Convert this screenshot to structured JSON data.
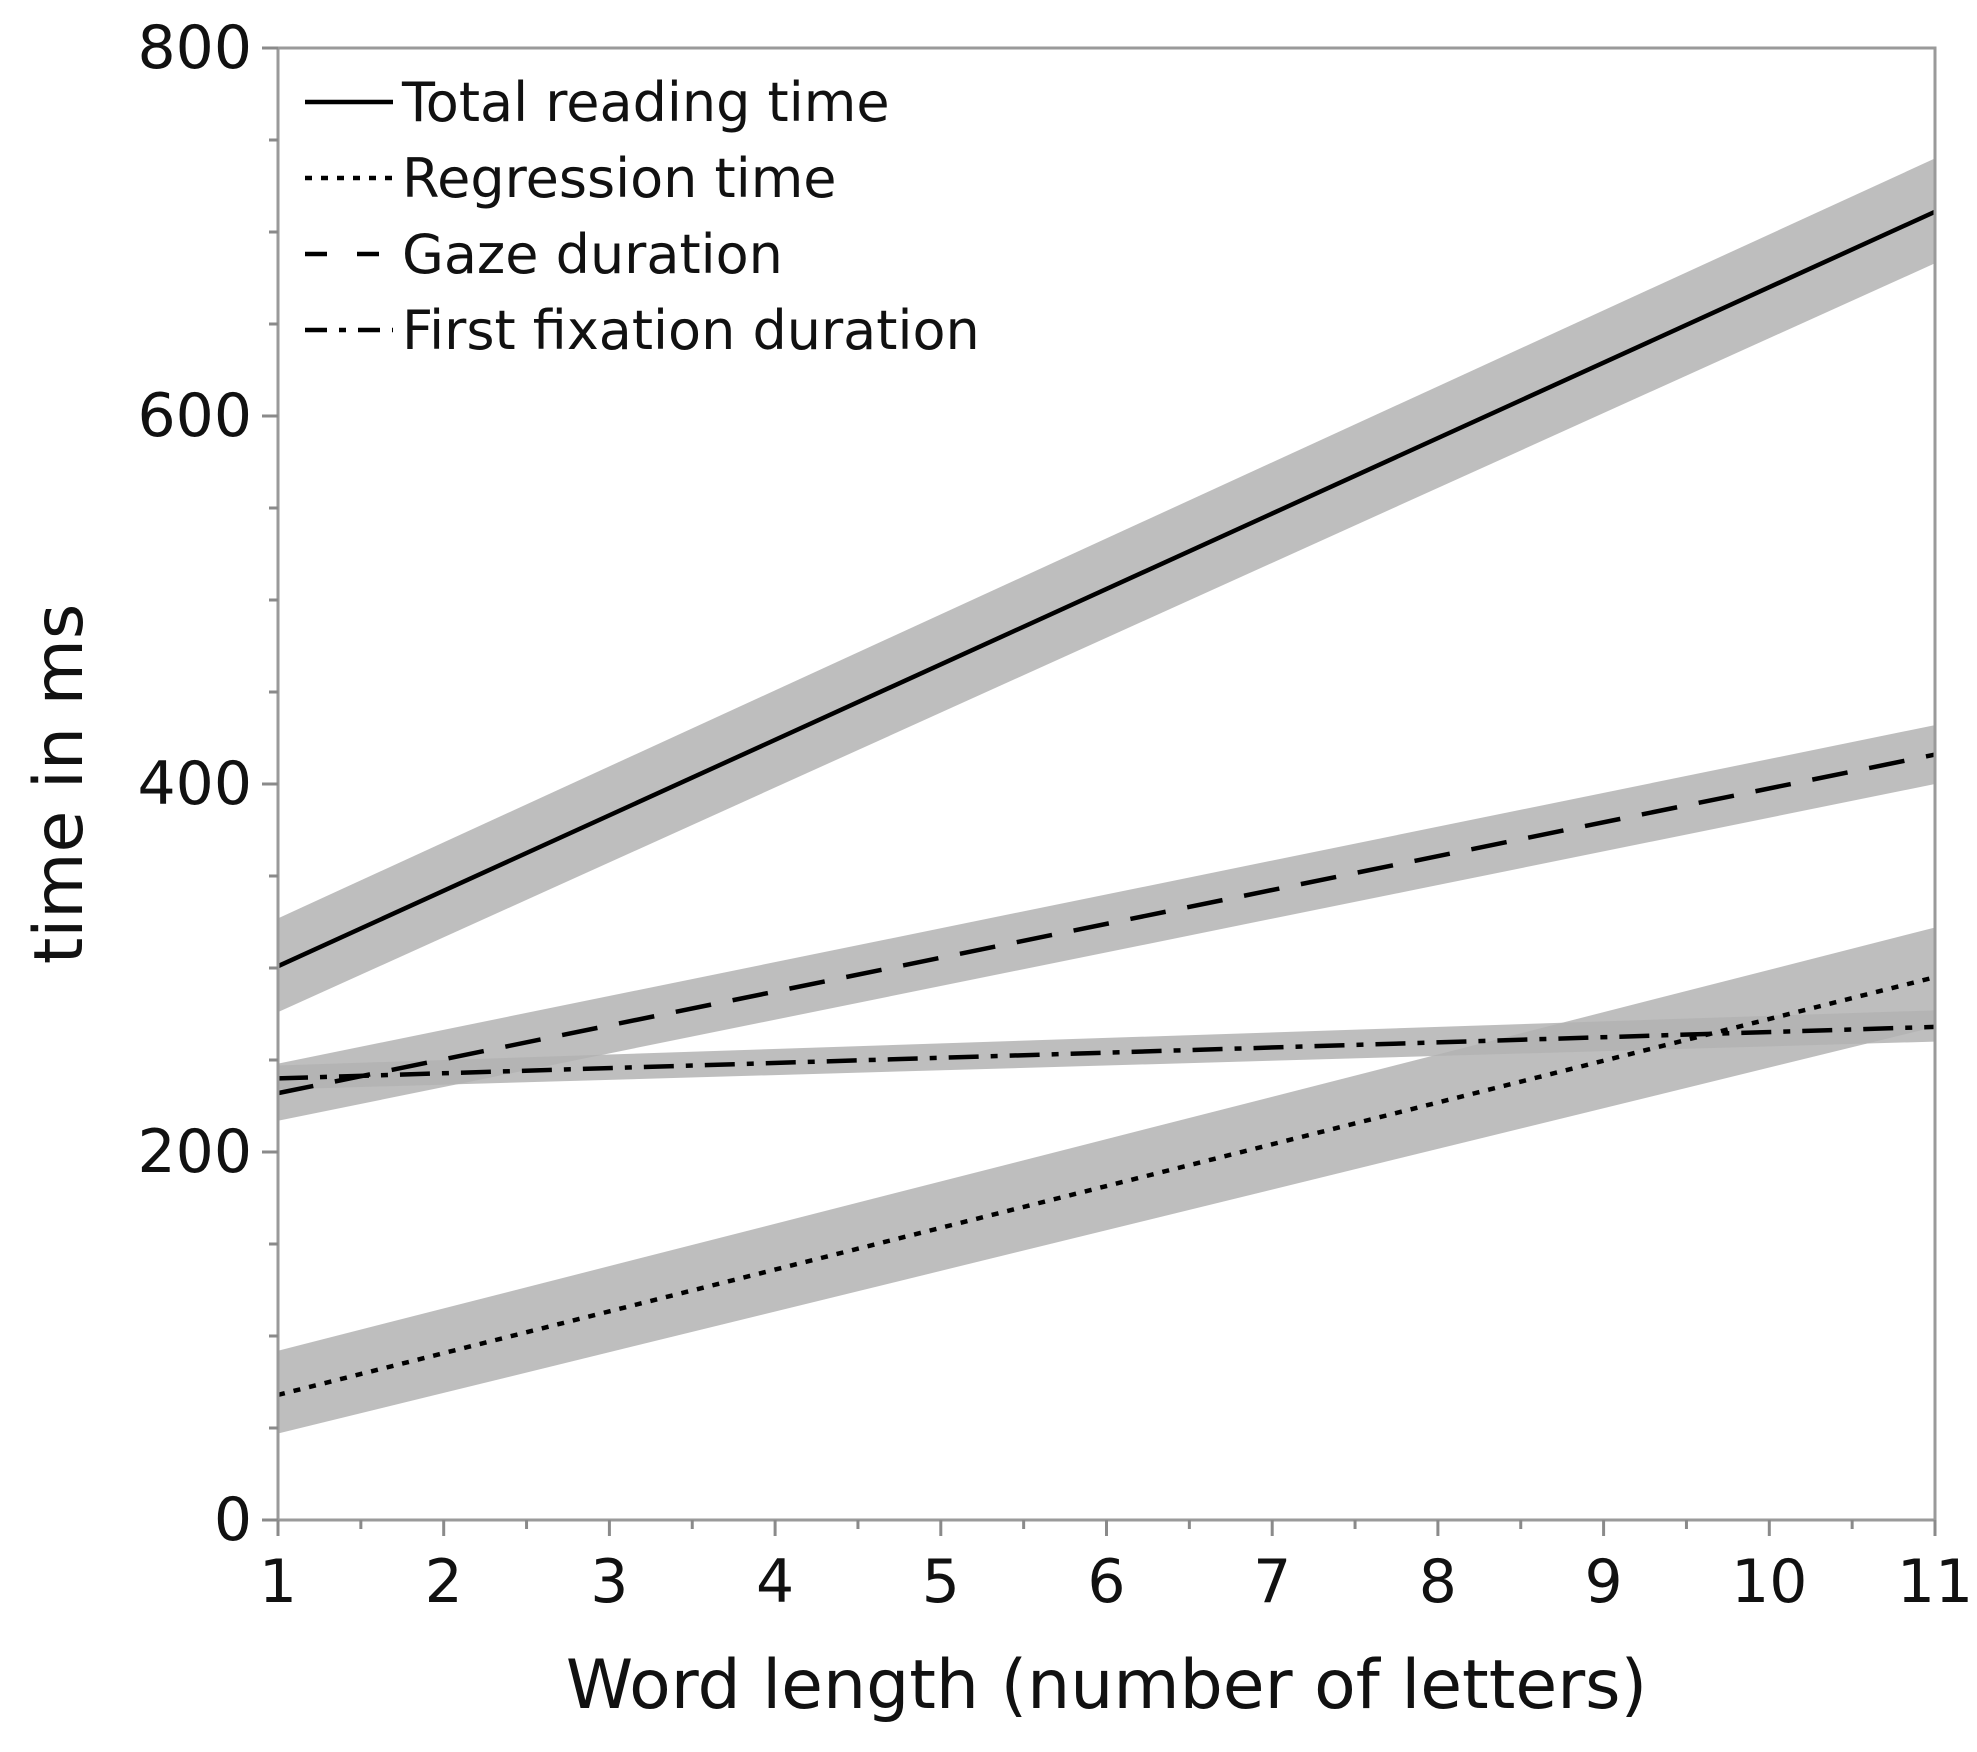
{
  "chart_data": {
    "type": "line",
    "xlabel": "Word length (number of letters)",
    "ylabel": "time in ms",
    "xlim": [
      1,
      11
    ],
    "ylim": [
      0,
      800
    ],
    "x_ticks": [
      "1",
      "2",
      "3",
      "4",
      "5",
      "6",
      "7",
      "8",
      "9",
      "10",
      "11"
    ],
    "y_ticks": [
      "0",
      "200",
      "400",
      "600",
      "800"
    ],
    "grid": false,
    "legend_position": "top-left",
    "band_color": "#b3b3b3",
    "line_color": "#000000",
    "series": [
      {
        "name": "Total reading time",
        "style": "solid",
        "x": [
          1,
          11
        ],
        "y": [
          301,
          711
        ],
        "ci_lower": [
          276,
          683
        ],
        "ci_upper": [
          327,
          740
        ]
      },
      {
        "name": "Regression time",
        "style": "dotted",
        "x": [
          1,
          11
        ],
        "y": [
          68,
          295
        ],
        "ci_lower": [
          47,
          268
        ],
        "ci_upper": [
          92,
          322
        ]
      },
      {
        "name": "Gaze duration",
        "style": "dashed",
        "x": [
          1,
          11
        ],
        "y": [
          232,
          416
        ],
        "ci_lower": [
          217,
          400
        ],
        "ci_upper": [
          248,
          432
        ]
      },
      {
        "name": "First fixation duration",
        "style": "dashdot",
        "x": [
          1,
          11
        ],
        "y": [
          240,
          268
        ],
        "ci_lower": [
          234,
          260
        ],
        "ci_upper": [
          247,
          277
        ]
      }
    ]
  }
}
